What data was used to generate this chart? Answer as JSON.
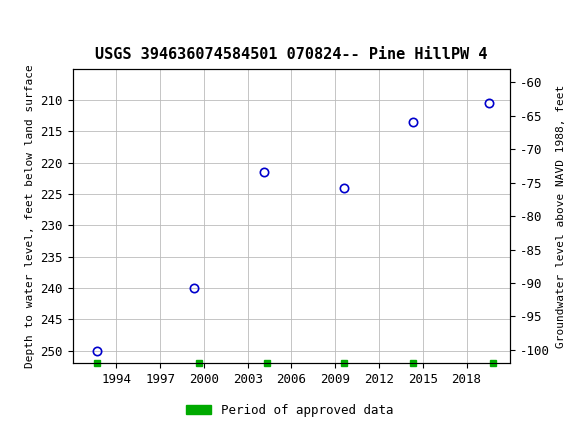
{
  "title": "USGS 394636074584501 070824-- Pine HillPW 4",
  "ylabel_left": "Depth to water level, feet below land surface",
  "ylabel_right": "Groundwater level above NAVD 1988, feet",
  "xlim": [
    1991.0,
    2021.0
  ],
  "ylim_left_top": 205,
  "ylim_left_bottom": 252,
  "ylim_right_top": -58,
  "ylim_right_bottom": -102,
  "xticks": [
    1994,
    1997,
    2000,
    2003,
    2006,
    2009,
    2012,
    2015,
    2018
  ],
  "yticks_left": [
    210,
    215,
    220,
    225,
    230,
    235,
    240,
    245,
    250
  ],
  "yticks_right": [
    -60,
    -65,
    -70,
    -75,
    -80,
    -85,
    -90,
    -95,
    -100
  ],
  "data_x": [
    1992.7,
    1999.3,
    2004.1,
    2009.6,
    2014.3,
    2019.5
  ],
  "data_y": [
    250.0,
    240.0,
    221.5,
    224.0,
    213.5,
    210.5
  ],
  "approved_x": [
    1992.7,
    1999.7,
    2004.3,
    2009.6,
    2014.3,
    2019.8
  ],
  "marker_color": "#0000cc",
  "marker_size": 6,
  "grid_color": "#bbbbbb",
  "header_color": "#1a6e3c",
  "background_color": "#ffffff",
  "legend_label": "Period of approved data",
  "legend_color": "#00aa00",
  "title_fontsize": 11,
  "axis_fontsize": 9,
  "ylabel_fontsize": 8
}
